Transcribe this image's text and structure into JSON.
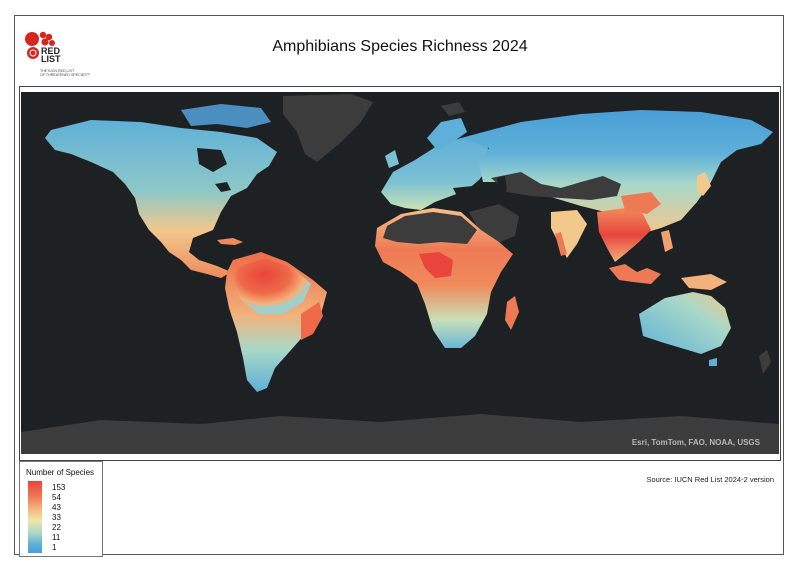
{
  "title": "Amphibians Species Richness 2024",
  "logo": {
    "wordmark_line1": "RED",
    "wordmark_line2": "LIST",
    "tagline_line1": "THE IUCN RED LIST",
    "tagline_line2": "OF THREATENED SPECIES™"
  },
  "map": {
    "attribution": "Esri, TomTom, FAO, NOAA, USGS",
    "ocean_color": "#1d2123",
    "no_data_land_color": "#3c3c3c"
  },
  "legend": {
    "title": "Number of Species",
    "labels": [
      "153",
      "54",
      "43",
      "33",
      "22",
      "11",
      "1"
    ],
    "colors": [
      "#e8453c",
      "#ee7a55",
      "#f4c08a",
      "#eee8a8",
      "#a8d8c8",
      "#5fb0d8",
      "#4a9ed6"
    ]
  },
  "source": "Source: IUCN Red List 2024-2 version"
}
